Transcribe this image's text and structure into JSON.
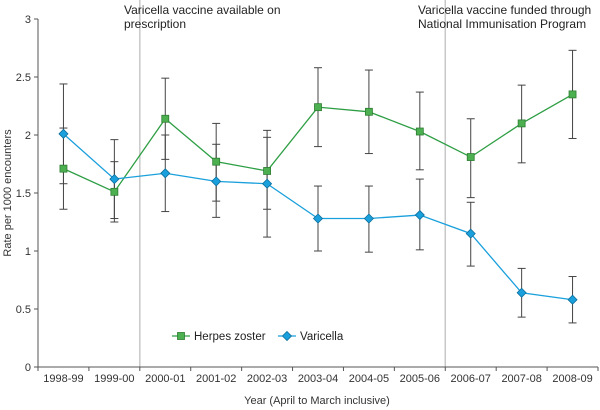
{
  "chart_data": {
    "type": "line",
    "title": "",
    "xlabel": "Year (April to March inclusive)",
    "ylabel": "Rate per 1000 encounters",
    "ylim": [
      0,
      3
    ],
    "yticks": [
      "0",
      "0.5",
      "1",
      "1.5",
      "2",
      "2.5",
      "3"
    ],
    "categories": [
      "1998-99",
      "1999-00",
      "2000-01",
      "2001-02",
      "2002-03",
      "2003-04",
      "2004-05",
      "2005-06",
      "2006-07",
      "2007-08",
      "2008-09"
    ],
    "series": [
      {
        "name": "Herpes zoster",
        "color": "#2e9e44",
        "fill": "#4cb050",
        "marker": "square",
        "values": [
          1.71,
          1.51,
          2.14,
          1.77,
          1.69,
          2.24,
          2.2,
          2.03,
          1.81,
          2.1,
          2.35
        ],
        "ci_low": [
          1.36,
          1.25,
          1.79,
          1.43,
          1.36,
          1.9,
          1.84,
          1.7,
          1.46,
          1.76,
          1.97
        ],
        "ci_high": [
          2.06,
          1.77,
          2.49,
          2.1,
          2.04,
          2.58,
          2.56,
          2.37,
          2.14,
          2.43,
          2.73
        ]
      },
      {
        "name": "Varicella",
        "color": "#1aa0dc",
        "fill": "#1aa0dc",
        "marker": "diamond",
        "values": [
          2.01,
          1.62,
          1.67,
          1.6,
          1.58,
          1.28,
          1.28,
          1.31,
          1.15,
          0.64,
          0.58
        ],
        "ci_low": [
          1.58,
          1.28,
          1.34,
          1.29,
          1.12,
          1.0,
          0.99,
          1.01,
          0.87,
          0.43,
          0.38
        ],
        "ci_high": [
          2.44,
          1.96,
          2.0,
          1.92,
          1.98,
          1.56,
          1.56,
          1.62,
          1.42,
          0.85,
          0.78
        ]
      }
    ],
    "annotations": [
      {
        "text_lines": [
          "Varicella vaccine available on",
          "prescription"
        ],
        "after_category": "1999-00"
      },
      {
        "text_lines": [
          "Varicella vaccine funded through",
          "National Immunisation Program"
        ],
        "after_category": "2005-06"
      }
    ],
    "legend": {
      "placement": "bottom-left-inside"
    },
    "grid": false
  }
}
